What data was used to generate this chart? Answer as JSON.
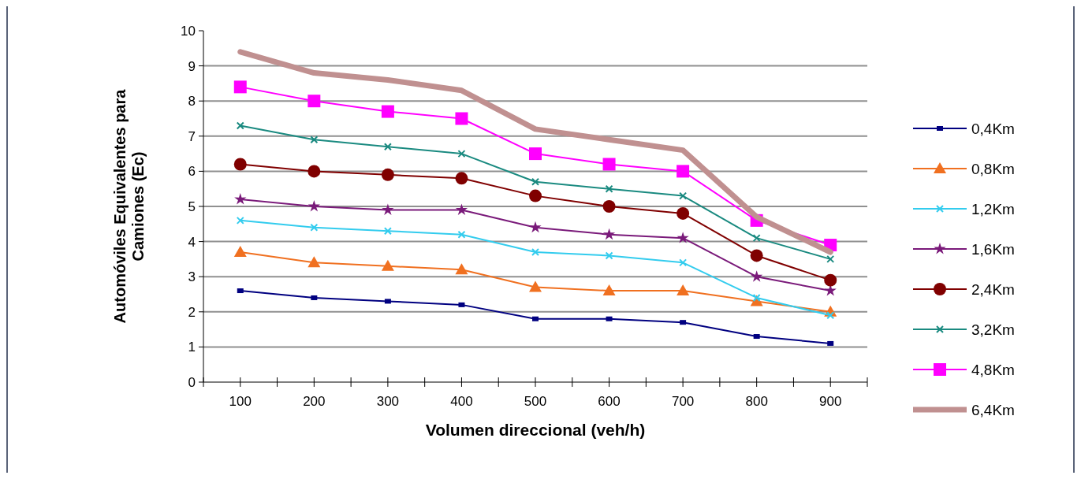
{
  "chart_data": {
    "type": "line",
    "xlabel": "Volumen direccional (veh/h)",
    "ylabel": "Automóviles Equivalentes para Camiones (Ec)",
    "categories": [
      "100",
      "200",
      "300",
      "400",
      "500",
      "600",
      "700",
      "800",
      "900"
    ],
    "ylim": [
      0,
      10
    ],
    "yticks": [
      0,
      1,
      2,
      3,
      4,
      5,
      6,
      7,
      8,
      9,
      10
    ],
    "grid": "y",
    "legend": "right",
    "series": [
      {
        "name": "0,4Km",
        "color": "#000080",
        "marker": "square",
        "values": [
          2.6,
          2.4,
          2.3,
          2.2,
          1.8,
          1.8,
          1.7,
          1.3,
          1.1
        ]
      },
      {
        "name": "0,8Km",
        "color": "#f07020",
        "marker": "triangle",
        "values": [
          3.7,
          3.4,
          3.3,
          3.2,
          2.7,
          2.6,
          2.6,
          2.3,
          2.0
        ]
      },
      {
        "name": "1,2Km",
        "color": "#33ccee",
        "marker": "cross",
        "values": [
          4.6,
          4.4,
          4.3,
          4.2,
          3.7,
          3.6,
          3.4,
          2.4,
          1.9
        ]
      },
      {
        "name": "1,6Km",
        "color": "#7a1a7a",
        "marker": "star",
        "values": [
          5.2,
          5.0,
          4.9,
          4.9,
          4.4,
          4.2,
          4.1,
          3.0,
          2.6
        ]
      },
      {
        "name": "2,4Km",
        "color": "#800000",
        "marker": "circle",
        "values": [
          6.2,
          6.0,
          5.9,
          5.8,
          5.3,
          5.0,
          4.8,
          3.6,
          2.9
        ]
      },
      {
        "name": "3,2Km",
        "color": "#1a8a80",
        "marker": "cross",
        "values": [
          7.3,
          6.9,
          6.7,
          6.5,
          5.7,
          5.5,
          5.3,
          4.1,
          3.5
        ]
      },
      {
        "name": "4,8Km",
        "color": "#ff00ff",
        "marker": "square",
        "values": [
          8.4,
          8.0,
          7.7,
          7.5,
          6.5,
          6.2,
          6.0,
          4.6,
          3.9
        ]
      },
      {
        "name": "6,4Km",
        "color": "#c09090",
        "marker": "none",
        "values": [
          9.4,
          8.8,
          8.6,
          8.3,
          7.2,
          6.9,
          6.6,
          4.7,
          3.7
        ]
      }
    ]
  }
}
